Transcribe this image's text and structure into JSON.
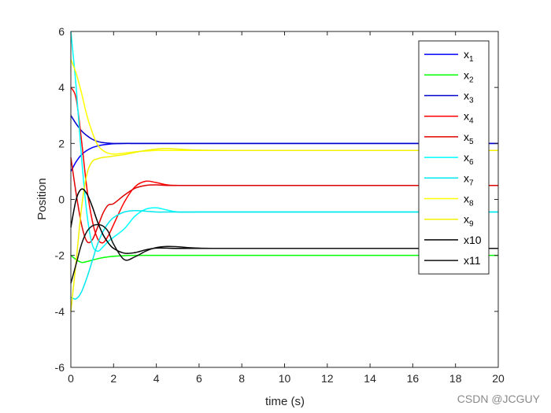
{
  "chart_data": {
    "type": "line",
    "xlabel": "time (s)",
    "ylabel": "Position",
    "xlim": [
      0,
      20
    ],
    "ylim": [
      -6,
      6
    ],
    "xticks": [
      0,
      2,
      4,
      6,
      8,
      10,
      12,
      14,
      16,
      18,
      20
    ],
    "yticks": [
      -6,
      -4,
      -2,
      0,
      2,
      4,
      6
    ],
    "grid": false,
    "legend_position": "top-right",
    "x": [
      0,
      0.25,
      0.5,
      0.75,
      1,
      1.25,
      1.5,
      1.75,
      2,
      2.5,
      3,
      3.5,
      4,
      4.5,
      5,
      6,
      8,
      10,
      12,
      14,
      16,
      18,
      20
    ],
    "series": [
      {
        "name": "x1",
        "label_base": "x",
        "label_sub": "1",
        "color": "#0000ff",
        "values": [
          1.0,
          1.35,
          1.6,
          1.75,
          1.85,
          1.91,
          1.95,
          1.97,
          1.99,
          2.0,
          2.0,
          2.0,
          2.0,
          2.0,
          2.0,
          2.0,
          2.0,
          2.0,
          2.0,
          2.0,
          2.0,
          2.0,
          2.0
        ]
      },
      {
        "name": "x2",
        "label_base": "x",
        "label_sub": "2",
        "color": "#00ff00",
        "values": [
          -2.0,
          -2.15,
          -2.25,
          -2.22,
          -2.17,
          -2.12,
          -2.08,
          -2.05,
          -2.03,
          -2.01,
          -2.0,
          -2.0,
          -2.0,
          -2.0,
          -2.0,
          -2.0,
          -2.0,
          -2.0,
          -2.0,
          -2.0,
          -2.0,
          -2.0,
          -2.0
        ]
      },
      {
        "name": "x3",
        "label_base": "x",
        "label_sub": "3",
        "color": "#0000cd",
        "values": [
          3.0,
          2.7,
          2.45,
          2.28,
          2.15,
          2.07,
          2.03,
          2.01,
          2.0,
          2.0,
          2.0,
          2.0,
          2.0,
          2.0,
          2.0,
          2.0,
          2.0,
          2.0,
          2.0,
          2.0,
          2.0,
          2.0,
          2.0
        ]
      },
      {
        "name": "x4",
        "label_base": "x",
        "label_sub": "4",
        "color": "#ff0000",
        "values": [
          4.0,
          3.6,
          2.1,
          0.4,
          -0.75,
          -1.4,
          -1.55,
          -1.3,
          -0.9,
          -0.1,
          0.45,
          0.65,
          0.6,
          0.52,
          0.5,
          0.5,
          0.5,
          0.5,
          0.5,
          0.5,
          0.5,
          0.5,
          0.5
        ]
      },
      {
        "name": "x5",
        "label_base": "x",
        "label_sub": "5",
        "color": "#e00000",
        "values": [
          1.5,
          0.2,
          -0.9,
          -1.5,
          -1.45,
          -1.0,
          -0.5,
          -0.2,
          -0.15,
          0.15,
          0.4,
          0.5,
          0.52,
          0.5,
          0.5,
          0.5,
          0.5,
          0.5,
          0.5,
          0.5,
          0.5,
          0.5,
          0.5
        ]
      },
      {
        "name": "x6",
        "label_base": "x",
        "label_sub": "6",
        "color": "#00ffff",
        "values": [
          6.0,
          4.0,
          1.5,
          -0.5,
          -1.6,
          -1.85,
          -1.7,
          -1.5,
          -1.35,
          -1.05,
          -0.6,
          -0.35,
          -0.3,
          -0.38,
          -0.45,
          -0.45,
          -0.45,
          -0.45,
          -0.45,
          -0.45,
          -0.45,
          -0.45,
          -0.45
        ]
      },
      {
        "name": "x7",
        "label_base": "x",
        "label_sub": "7",
        "color": "#00e8ee",
        "values": [
          -3.5,
          -3.55,
          -3.3,
          -2.8,
          -2.2,
          -1.6,
          -1.15,
          -0.85,
          -0.65,
          -0.45,
          -0.4,
          -0.42,
          -0.45,
          -0.45,
          -0.45,
          -0.45,
          -0.45,
          -0.45,
          -0.45,
          -0.45,
          -0.45,
          -0.45,
          -0.45
        ]
      },
      {
        "name": "x8",
        "label_base": "x",
        "label_sub": "8",
        "color": "#ffff00",
        "values": [
          5.0,
          4.5,
          3.8,
          3.0,
          2.4,
          1.95,
          1.75,
          1.65,
          1.62,
          1.65,
          1.7,
          1.73,
          1.75,
          1.75,
          1.75,
          1.75,
          1.75,
          1.75,
          1.75,
          1.75,
          1.75,
          1.75,
          1.75
        ]
      },
      {
        "name": "x9",
        "label_base": "x",
        "label_sub": "9",
        "color": "#f2f200",
        "values": [
          -4.0,
          -2.2,
          -0.3,
          0.9,
          1.35,
          1.45,
          1.5,
          1.52,
          1.55,
          1.6,
          1.68,
          1.75,
          1.8,
          1.82,
          1.8,
          1.76,
          1.75,
          1.75,
          1.75,
          1.75,
          1.75,
          1.75,
          1.75
        ]
      },
      {
        "name": "x10",
        "label_base": "x10",
        "label_sub": "",
        "color": "#000000",
        "values": [
          -1.0,
          0.0,
          0.37,
          0.2,
          -0.25,
          -0.8,
          -1.25,
          -1.55,
          -1.75,
          -1.92,
          -1.9,
          -1.8,
          -1.74,
          -1.74,
          -1.75,
          -1.75,
          -1.75,
          -1.75,
          -1.75,
          -1.75,
          -1.75,
          -1.75,
          -1.75
        ]
      },
      {
        "name": "x11",
        "label_base": "x11",
        "label_sub": "",
        "color": "#111111",
        "values": [
          -3.0,
          -2.3,
          -1.6,
          -1.15,
          -0.95,
          -0.9,
          -0.95,
          -1.15,
          -1.6,
          -2.15,
          -2.05,
          -1.85,
          -1.72,
          -1.68,
          -1.69,
          -1.74,
          -1.75,
          -1.75,
          -1.75,
          -1.75,
          -1.75,
          -1.75,
          -1.75
        ]
      }
    ]
  },
  "watermark": "CSDN @JCGUY"
}
